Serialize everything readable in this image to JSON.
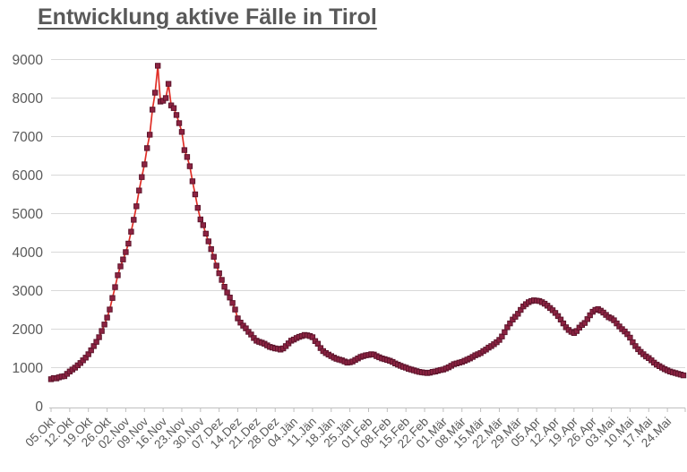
{
  "title": "Entwicklung aktive Fälle in Tirol",
  "chart_data": {
    "type": "line",
    "title": "Entwicklung aktive Fälle in Tirol",
    "series_name": "aktive Fälle",
    "legend": "none",
    "grid": "horizontal",
    "ylim": [
      0,
      9000
    ],
    "y_ticks": [
      0,
      1000,
      2000,
      3000,
      4000,
      5000,
      6000,
      7000,
      8000,
      9000
    ],
    "x_tick_labels": [
      "05.Okt",
      "12.Okt",
      "19.Okt",
      "26.Okt",
      "02.Nov",
      "09.Nov",
      "16.Nov",
      "23.Nov",
      "30.Nov",
      "07.Dez",
      "14.Dez",
      "21.Dez",
      "28.Dez",
      "04.Jän",
      "11.Jän",
      "18.Jän",
      "25.Jän",
      "01.Feb",
      "08.Feb",
      "15.Feb",
      "22.Feb",
      "01.Mär",
      "08.Mär",
      "15.Mär",
      "22.Mär",
      "29.Mär",
      "05.Apr",
      "12.Apr",
      "19.Apr",
      "26.Apr",
      "03.Mai",
      "10.Mai",
      "17.Mai",
      "24.Mai"
    ],
    "points_per_label": 7,
    "note": "daily values, one per day starting 05.Okt; estimated from pixels",
    "values": [
      700,
      730,
      720,
      750,
      770,
      780,
      840,
      900,
      950,
      1000,
      1060,
      1120,
      1190,
      1260,
      1350,
      1450,
      1560,
      1670,
      1790,
      1950,
      2120,
      2300,
      2510,
      2810,
      3090,
      3400,
      3630,
      3810,
      4000,
      4220,
      4530,
      4840,
      5190,
      5600,
      5950,
      6280,
      6700,
      7050,
      7700,
      8140,
      8840,
      7910,
      7930,
      8000,
      8370,
      7810,
      7740,
      7560,
      7350,
      7120,
      6650,
      6470,
      6230,
      5840,
      5500,
      5150,
      4850,
      4700,
      4480,
      4280,
      4080,
      3880,
      3650,
      3450,
      3280,
      3100,
      2950,
      2820,
      2680,
      2510,
      2280,
      2170,
      2090,
      2020,
      1930,
      1860,
      1770,
      1700,
      1670,
      1650,
      1620,
      1580,
      1540,
      1520,
      1500,
      1490,
      1470,
      1500,
      1560,
      1630,
      1700,
      1730,
      1770,
      1800,
      1820,
      1850,
      1840,
      1820,
      1790,
      1690,
      1620,
      1510,
      1430,
      1380,
      1340,
      1300,
      1260,
      1230,
      1210,
      1190,
      1160,
      1130,
      1140,
      1160,
      1200,
      1240,
      1280,
      1300,
      1320,
      1330,
      1350,
      1340,
      1300,
      1270,
      1240,
      1220,
      1200,
      1180,
      1150,
      1110,
      1080,
      1050,
      1020,
      1000,
      970,
      950,
      930,
      910,
      890,
      880,
      870,
      860,
      870,
      890,
      900,
      920,
      940,
      950,
      980,
      1010,
      1050,
      1090,
      1110,
      1130,
      1150,
      1180,
      1210,
      1240,
      1280,
      1320,
      1350,
      1380,
      1430,
      1470,
      1520,
      1560,
      1610,
      1660,
      1720,
      1810,
      1920,
      2050,
      2150,
      2250,
      2320,
      2400,
      2500,
      2590,
      2650,
      2700,
      2730,
      2750,
      2740,
      2730,
      2700,
      2660,
      2610,
      2550,
      2490,
      2420,
      2340,
      2250,
      2150,
      2050,
      1980,
      1930,
      1900,
      1950,
      2040,
      2110,
      2160,
      2260,
      2360,
      2450,
      2500,
      2520,
      2480,
      2430,
      2370,
      2310,
      2280,
      2230,
      2150,
      2070,
      2000,
      1940,
      1870,
      1780,
      1660,
      1560,
      1480,
      1410,
      1350,
      1290,
      1250,
      1190,
      1130,
      1080,
      1040,
      1000,
      960,
      930,
      900,
      880,
      860,
      840,
      820,
      800
    ],
    "colors": {
      "line": "#e02e26",
      "marker_fill": "#8c2342",
      "marker_stroke": "#5e152c",
      "grid": "#d9d9d9",
      "axis": "#bfbfbf",
      "tick_text": "#595959",
      "title_text": "#595959"
    }
  }
}
